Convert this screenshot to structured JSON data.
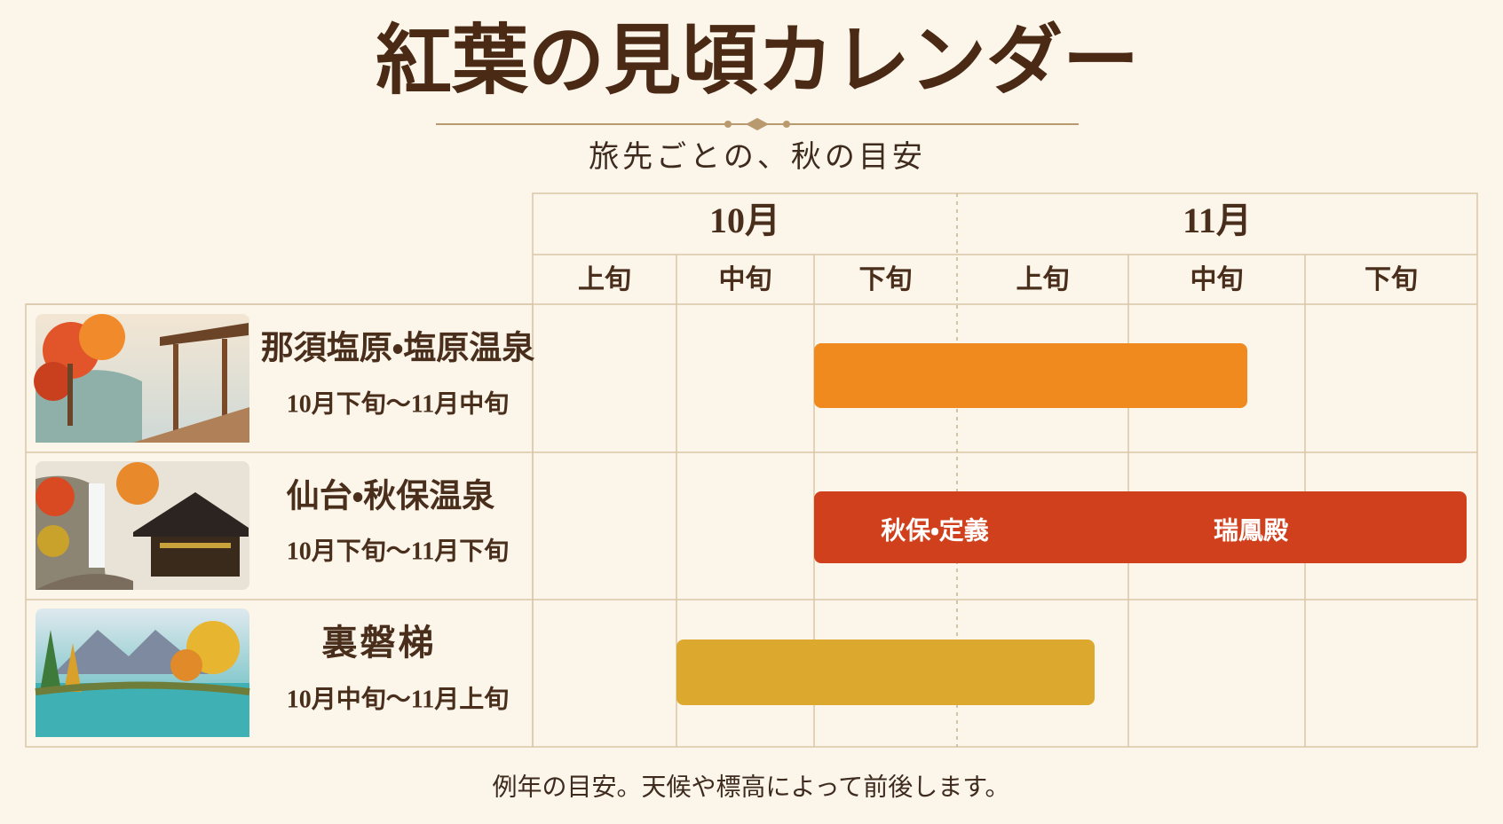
{
  "title": "紅葉の見頃カレンダー",
  "subtitle": "旅先ごとの、秋の目安",
  "months": [
    "10月",
    "11月"
  ],
  "periods": [
    "上旬",
    "中旬",
    "下旬",
    "上旬",
    "中旬",
    "下旬"
  ],
  "rows": [
    {
      "name": "那須塩原・塩原温泉",
      "period": "10月下旬～11月中旬"
    },
    {
      "name": "仙台・秋保温泉",
      "period": "10月下旬～11月下旬",
      "bar_labels": [
        "秋保・定義",
        "瑞鳳殿"
      ]
    },
    {
      "name": "裏磐梯",
      "period": "10月中旬～11月上旬"
    }
  ],
  "note": "例年の目安。天候や標高によって前後します。"
}
